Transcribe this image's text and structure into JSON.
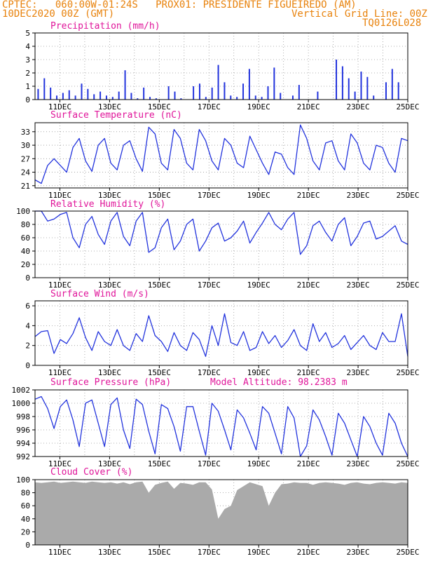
{
  "header": {
    "line1": "CPTEC:   060:00W-01:24S   PROX01: PRESIDENTE FIGUEIREDO (AM)",
    "line2_left": "10DEC2020 00Z (GMT)",
    "line2_right": "Vertical Grid Line: 00Z",
    "line3_right": "TQ0126L028"
  },
  "colors": {
    "header": "#e8820c",
    "title": "#e0159a",
    "series": "#2233dd",
    "cloud": "#aaaaaa",
    "grid": "#999999"
  },
  "chart_data": [
    {
      "id": "precip",
      "type": "bar",
      "title": "Precipitation (mm/h)",
      "ylim": [
        0,
        5
      ],
      "yticks": [
        "0",
        "1",
        "2",
        "3",
        "4",
        "5"
      ],
      "xticks": [
        "11DEC",
        "13DEC",
        "15DEC",
        "17DEC",
        "19DEC",
        "21DEC",
        "23DEC",
        "25DEC"
      ],
      "x_day_range": [
        10.0,
        25.0
      ],
      "values_6h": [
        0.8,
        1.6,
        0.9,
        0.3,
        0.5,
        0.7,
        0.3,
        1.2,
        0.8,
        0.4,
        0.6,
        0.3,
        0.2,
        0.6,
        2.2,
        0.5,
        0.1,
        0.9,
        0.2,
        0.1,
        0.0,
        1.0,
        0.6,
        0.1,
        0.0,
        1.0,
        1.2,
        0.2,
        0.9,
        2.6,
        1.3,
        0.3,
        0.2,
        1.2,
        2.3,
        0.3,
        0.2,
        1.0,
        2.4,
        0.5,
        0.0,
        0.3,
        1.1,
        0.0,
        0.0,
        0.6,
        0.0,
        0.0,
        3.0,
        2.5,
        1.6,
        0.6,
        2.1,
        1.7,
        0.3,
        0.0,
        1.3,
        2.3,
        1.3,
        0.0
      ]
    },
    {
      "id": "temp",
      "type": "line",
      "title": "Surface Temperature (nC)",
      "ylim": [
        20.5,
        35
      ],
      "yticks": [
        "21",
        "24",
        "27",
        "30",
        "33"
      ],
      "ytick_values": [
        21,
        24,
        27,
        30,
        33
      ],
      "xticks": [
        "11DEC",
        "13DEC",
        "15DEC",
        "17DEC",
        "19DEC",
        "21DEC",
        "23DEC",
        "25DEC"
      ],
      "x_day_range": [
        10.0,
        25.0
      ],
      "values_6h": [
        22.3,
        21.5,
        25.5,
        27.0,
        25.5,
        24.0,
        29.5,
        31.5,
        26.5,
        24.2,
        30.0,
        31.5,
        26.0,
        24.5,
        30.0,
        31.0,
        27.0,
        24.2,
        34.0,
        32.5,
        26.0,
        24.5,
        33.5,
        31.5,
        26.0,
        24.5,
        33.5,
        31.0,
        26.5,
        24.5,
        31.5,
        30.0,
        26.0,
        25.0,
        32.0,
        29.0,
        26.0,
        23.5,
        28.5,
        28.0,
        25.0,
        23.5,
        34.5,
        31.5,
        26.5,
        24.5,
        30.5,
        31.0,
        26.5,
        24.5,
        32.5,
        30.5,
        26.0,
        24.5,
        30.0,
        29.5,
        26.0,
        24.0,
        31.5,
        31.0
      ]
    },
    {
      "id": "rh",
      "type": "line",
      "title": "Relative Humidity (%)",
      "ylim": [
        0,
        100
      ],
      "yticks": [
        "0",
        "20",
        "40",
        "60",
        "80",
        "100"
      ],
      "ytick_values": [
        0,
        20,
        40,
        60,
        80,
        100
      ],
      "xticks": [
        "11DEC",
        "13DEC",
        "15DEC",
        "17DEC",
        "19DEC",
        "21DEC",
        "23DEC",
        "25DEC"
      ],
      "x_day_range": [
        10.0,
        25.0
      ],
      "values_6h": [
        100,
        100,
        85,
        88,
        95,
        98,
        60,
        45,
        80,
        92,
        65,
        50,
        85,
        98,
        62,
        48,
        85,
        98,
        38,
        45,
        75,
        88,
        42,
        55,
        80,
        88,
        40,
        55,
        75,
        82,
        55,
        60,
        70,
        85,
        52,
        68,
        82,
        98,
        80,
        72,
        88,
        98,
        35,
        48,
        78,
        85,
        68,
        55,
        80,
        90,
        48,
        62,
        82,
        85,
        58,
        62,
        70,
        78,
        55,
        50
      ]
    },
    {
      "id": "wind",
      "type": "line",
      "title": "Surface Wind (m/s)",
      "ylim": [
        0,
        6.5
      ],
      "yticks": [
        "0",
        "2",
        "4",
        "6"
      ],
      "ytick_values": [
        0,
        2,
        4,
        6
      ],
      "xticks": [
        "11DEC",
        "13DEC",
        "15DEC",
        "17DEC",
        "19DEC",
        "21DEC",
        "23DEC",
        "25DEC"
      ],
      "x_day_range": [
        10.0,
        25.0
      ],
      "values_6h": [
        2.9,
        3.4,
        3.5,
        1.2,
        2.6,
        2.2,
        3.2,
        4.8,
        2.8,
        1.5,
        3.4,
        2.4,
        2.0,
        3.6,
        2.0,
        1.5,
        3.2,
        2.4,
        5.0,
        3.0,
        2.4,
        1.4,
        3.3,
        2.0,
        1.5,
        3.3,
        2.6,
        0.9,
        4.0,
        2.0,
        5.2,
        2.3,
        2.0,
        3.4,
        1.5,
        1.8,
        3.4,
        2.2,
        3.0,
        1.8,
        2.5,
        3.6,
        2.0,
        1.5,
        4.2,
        2.4,
        3.3,
        1.8,
        2.2,
        3.0,
        1.6,
        2.3,
        3.0,
        2.0,
        1.6,
        3.3,
        2.4,
        2.4,
        5.2,
        0.9
      ]
    },
    {
      "id": "pres",
      "type": "line",
      "title": "Surface Pressure (hPa)",
      "annotation": "Model Altitude: 98.2383 m",
      "ylim": [
        992,
        1002
      ],
      "yticks": [
        "992",
        "994",
        "996",
        "998",
        "1000",
        "1002"
      ],
      "ytick_values": [
        992,
        994,
        996,
        998,
        1000,
        1002
      ],
      "xticks": [
        "11DEC",
        "13DEC",
        "15DEC",
        "17DEC",
        "19DEC",
        "21DEC",
        "23DEC",
        "25DEC"
      ],
      "x_day_range": [
        10.0,
        25.0
      ],
      "values_6h": [
        1000.6,
        1001.0,
        999.2,
        996.2,
        999.5,
        1000.5,
        997.5,
        993.5,
        1000.0,
        1000.5,
        997.0,
        993.5,
        999.8,
        1000.8,
        996.0,
        993.2,
        1000.6,
        999.8,
        995.8,
        992.4,
        999.8,
        999.2,
        996.5,
        992.8,
        999.5,
        999.5,
        995.8,
        992.2,
        1000.0,
        998.8,
        996.0,
        993.0,
        999.0,
        997.8,
        995.5,
        993.0,
        999.5,
        998.5,
        995.5,
        992.4,
        999.5,
        997.8,
        992.0,
        993.6,
        999.0,
        997.5,
        995.0,
        992.2,
        998.5,
        997.0,
        994.5,
        992.0,
        998.0,
        996.5,
        994.0,
        992.2,
        998.5,
        997.0,
        994.0,
        992.0
      ]
    },
    {
      "id": "cloud",
      "type": "area",
      "title": "Cloud Cover (%)",
      "ylim": [
        0,
        100
      ],
      "yticks": [
        "0",
        "20",
        "40",
        "60",
        "80",
        "100"
      ],
      "ytick_values": [
        0,
        20,
        40,
        60,
        80,
        100
      ],
      "xticks": [
        "11DEC",
        "13DEC",
        "15DEC",
        "17DEC",
        "19DEC",
        "21DEC",
        "23DEC",
        "25DEC"
      ],
      "x_day_range": [
        10.0,
        25.0
      ],
      "values_6h": [
        96,
        95,
        96,
        97,
        95,
        96,
        97,
        96,
        95,
        97,
        96,
        95,
        96,
        94,
        96,
        93,
        96,
        97,
        80,
        92,
        95,
        97,
        86,
        95,
        94,
        92,
        96,
        96,
        85,
        40,
        55,
        60,
        84,
        90,
        96,
        93,
        90,
        60,
        80,
        93,
        94,
        96,
        95,
        95,
        92,
        95,
        96,
        95,
        94,
        92,
        95,
        96,
        94,
        93,
        95,
        96,
        95,
        94,
        96,
        95
      ]
    }
  ]
}
